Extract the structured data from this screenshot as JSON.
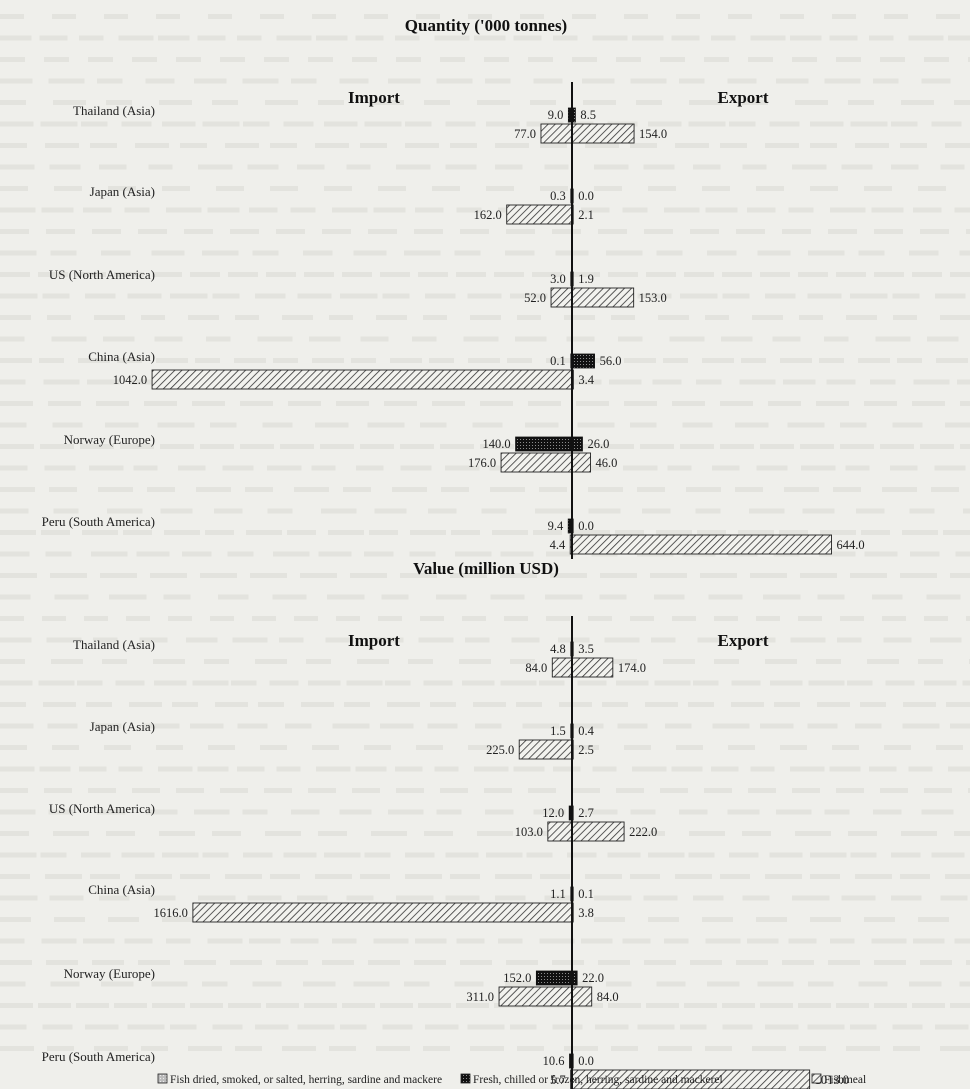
{
  "chart_data": [
    {
      "type": "bar",
      "title": "Quantity ('000 tonnes)",
      "left_label": "Import",
      "right_label": "Export",
      "categories": [
        "Thailand (Asia)",
        "Japan (Asia)",
        "US (North America)",
        "China (Asia)",
        "Norway (Europe)",
        "Peru (South America)"
      ],
      "series": [
        {
          "name": "Fish dried, smoked, or salted, herring, sardine and mackere",
          "import": [
            0,
            0,
            0,
            0,
            0,
            0
          ],
          "export": [
            0,
            0,
            0,
            0,
            0,
            0
          ]
        },
        {
          "name": "Fresh, chilled or frozen, herring, sardine and mackerel",
          "import": [
            9.0,
            0.3,
            3.0,
            0.1,
            140.0,
            9.4
          ],
          "export": [
            8.5,
            0.0,
            1.9,
            56.0,
            26.0,
            0.0
          ]
        },
        {
          "name": "Fishmeal",
          "import": [
            77.0,
            162.0,
            52.0,
            1042.0,
            176.0,
            4.4
          ],
          "export": [
            154.0,
            2.1,
            153.0,
            3.4,
            46.0,
            644.0
          ]
        }
      ]
    },
    {
      "type": "bar",
      "title": "Value (million USD)",
      "left_label": "Import",
      "right_label": "Export",
      "categories": [
        "Thailand (Asia)",
        "Japan (Asia)",
        "US (North America)",
        "China (Asia)",
        "Norway (Europe)",
        "Peru (South America)"
      ],
      "series": [
        {
          "name": "Fish dried, smoked, or salted, herring, sardine and mackere",
          "import": [
            0,
            0,
            0,
            0,
            0,
            0
          ],
          "export": [
            0,
            0,
            0,
            0,
            0,
            0
          ]
        },
        {
          "name": "Fresh, chilled or frozen, herring, sardine and mackerel",
          "import": [
            4.8,
            1.5,
            12.0,
            1.1,
            152.0,
            10.6
          ],
          "export": [
            3.5,
            0.4,
            2.7,
            0.1,
            22.0,
            0.0
          ]
        },
        {
          "name": "Fishmeal",
          "import": [
            84.0,
            225.0,
            103.0,
            1616.0,
            311.0,
            5.7
          ],
          "export": [
            174.0,
            2.5,
            222.0,
            3.8,
            84.0,
            1013.0
          ]
        }
      ]
    }
  ],
  "legend": [
    {
      "label": "Fish dried, smoked, or salted, herring, sardine and mackere",
      "pattern": "light"
    },
    {
      "label": "Fresh, chilled or frozen, herring, sardine and mackerel",
      "pattern": "dots"
    },
    {
      "label": "Fishmeal",
      "pattern": "hatch"
    }
  ],
  "colors": {
    "background": "#efefeb",
    "axis": "#111111",
    "dark": "#222222"
  }
}
